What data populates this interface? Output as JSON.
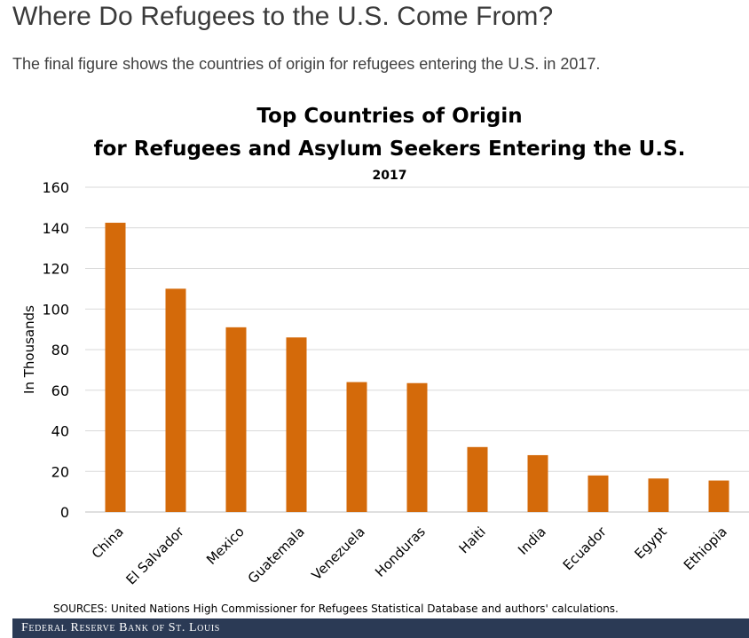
{
  "page": {
    "heading": "Where Do Refugees to the U.S. Come From?",
    "intro": "The final figure shows the countries of origin for refugees entering the U.S. in 2017."
  },
  "chart_data": {
    "type": "bar",
    "title": "Top Countries of Origin",
    "title_line2": "for Refugees and Asylum Seekers Entering the U.S.",
    "subtitle": "2017",
    "ylabel": "In Thousands",
    "xlabel": "",
    "categories": [
      "China",
      "El Salvador",
      "Mexico",
      "Guatemala",
      "Venezuela",
      "Honduras",
      "Haiti",
      "India",
      "Ecuador",
      "Egypt",
      "Ethiopia"
    ],
    "values": [
      142.5,
      110,
      91,
      86,
      64,
      63.5,
      32,
      28,
      18,
      16.5,
      15.5
    ],
    "ylim": [
      0,
      160
    ],
    "yticks": [
      0,
      20,
      40,
      60,
      80,
      100,
      120,
      140,
      160
    ],
    "grid": true,
    "bar_color": "#d46a0a",
    "source": "SOURCES: United Nations High Commissioner for Refugees Statistical Database and authors' calculations."
  },
  "footer": {
    "brand": "Federal Reserve Bank of St. Louis",
    "background": "#2b3a55"
  }
}
